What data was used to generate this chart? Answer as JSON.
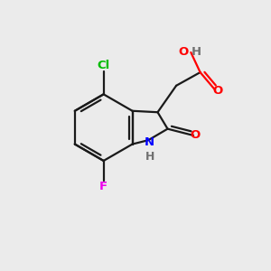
{
  "background_color": "#EBEBEB",
  "bond_color": "#1a1a1a",
  "atom_colors": {
    "O": "#FF0000",
    "N": "#0000FF",
    "Cl": "#00BB00",
    "F": "#EE00EE",
    "H_gray": "#707070"
  },
  "line_width": 1.6,
  "figsize": [
    3.0,
    3.0
  ],
  "dpi": 100
}
